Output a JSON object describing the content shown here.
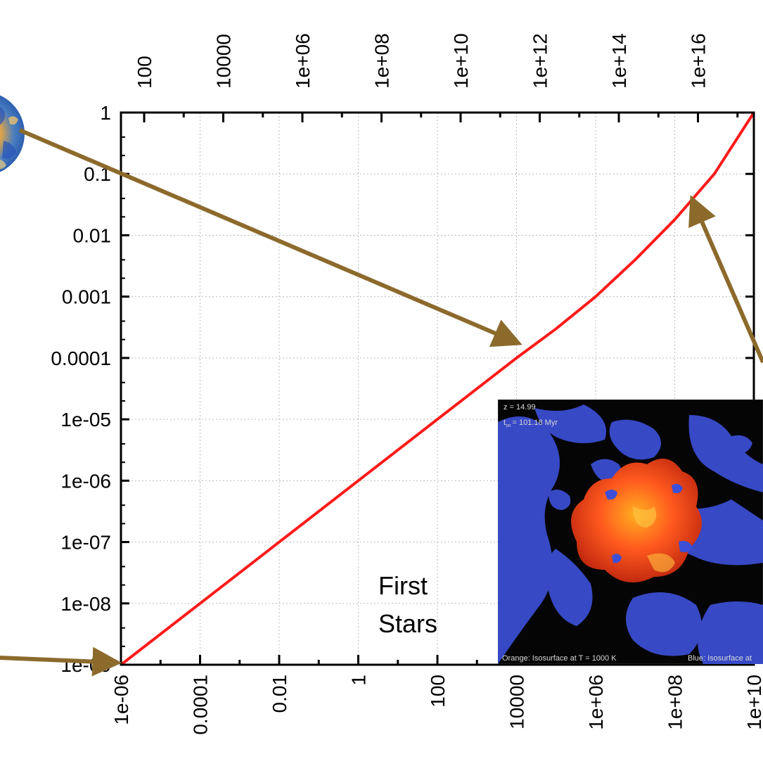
{
  "chart_data": {
    "type": "line",
    "title": "",
    "xlabel": "",
    "ylabel": "",
    "x_scale": "log",
    "y_scale": "log",
    "xlim": [
      1e-06,
      10000000000.0
    ],
    "ylim": [
      1e-09,
      1
    ],
    "x_ticks_bottom": [
      1e-06,
      0.0001,
      0.01,
      1,
      100,
      10000,
      1000000.0,
      100000000.0,
      10000000000.0
    ],
    "x_tick_labels_bottom": [
      "1e-06",
      "0.0001",
      "0.01",
      "1",
      "100",
      "10000",
      "1e+06",
      "1e+08",
      "1e+10"
    ],
    "x_ticks_top": [
      100,
      10000,
      1000000.0,
      100000000.0,
      10000000000.0,
      1000000000000.0,
      100000000000000.0,
      1e+16
    ],
    "x_tick_labels_top": [
      "100",
      "10000",
      "1e+06",
      "1e+08",
      "1e+10",
      "1e+12",
      "1e+14",
      "1e+16"
    ],
    "y_ticks": [
      1,
      0.1,
      0.01,
      0.001,
      0.0001,
      1e-05,
      1e-06,
      1e-07,
      1e-08,
      1e-09
    ],
    "y_tick_labels": [
      "1",
      "0.1",
      "0.01",
      "0.001",
      "0.0001",
      "1e-05",
      "1e-06",
      "1e-07",
      "1e-08",
      "1e-09"
    ],
    "grid": true,
    "series": [
      {
        "color": "#ff1a1a",
        "x": [
          1e-06,
          0.0001,
          0.01,
          1,
          100,
          10000,
          100000,
          1000000,
          10000000,
          100000000,
          1000000000,
          10000000000
        ],
        "y": [
          1e-09,
          1e-08,
          1e-07,
          1e-06,
          1e-05,
          0.0001,
          0.0003,
          0.001,
          0.004,
          0.018,
          0.1,
          1
        ]
      }
    ],
    "annotations": [
      {
        "text": "First\nStars",
        "lines": [
          "First",
          "Stars"
        ]
      }
    ],
    "arrow_color": "#8c6a2c"
  },
  "inset": {
    "redshift_label": "z  = 14.99",
    "time_label": "t",
    "time_subscript": "sn",
    "time_value": "= 101.18 Myr",
    "caption_left": "Orange: Isosurface at T = 1000 K",
    "caption_right": "Blue: Isosurface at"
  },
  "colors": {
    "curve": "#ff1a1a",
    "arrow": "#8c6a2c",
    "inset_background": "#050505",
    "filament_blue": "#3c4fd6",
    "bubble_orange": "#ff5a1e"
  }
}
